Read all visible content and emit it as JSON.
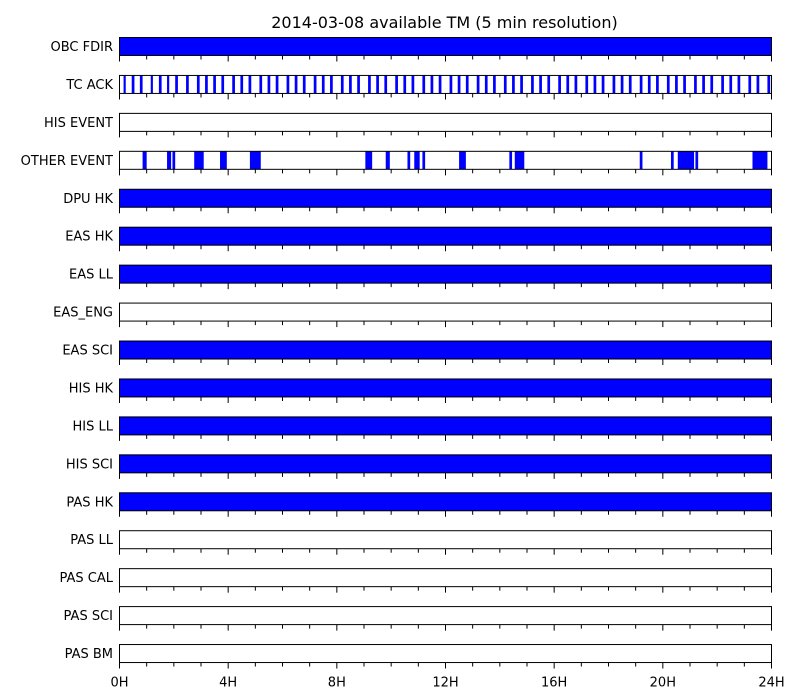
{
  "chart_data": {
    "type": "timeline",
    "title": "2014-03-08 available TM (5 min resolution)",
    "x_unit": "hours",
    "xlim": [
      0,
      24
    ],
    "x_ticks": [
      {
        "value": 0,
        "label": "0H"
      },
      {
        "value": 4,
        "label": "4H"
      },
      {
        "value": 8,
        "label": "8H"
      },
      {
        "value": 12,
        "label": "12H"
      },
      {
        "value": 16,
        "label": "16H"
      },
      {
        "value": 20,
        "label": "20H"
      },
      {
        "value": 24,
        "label": "24H"
      }
    ],
    "minor_tick_step_hours": 1,
    "available_color": "#0000ff",
    "empty_color": "#ffffff",
    "border_color": "#000000",
    "rows": [
      {
        "label": "OBC FDIR",
        "intervals": [
          [
            0,
            24
          ]
        ]
      },
      {
        "label": "TC ACK",
        "intervals": [
          [
            0.15,
            0.23
          ],
          [
            0.45,
            0.55
          ],
          [
            0.75,
            0.85
          ],
          [
            1.15,
            1.23
          ],
          [
            1.45,
            1.55
          ],
          [
            1.75,
            1.83
          ],
          [
            2.05,
            2.15
          ],
          [
            2.45,
            2.55
          ],
          [
            2.85,
            2.95
          ],
          [
            3.15,
            3.25
          ],
          [
            3.45,
            3.55
          ],
          [
            3.75,
            3.85
          ],
          [
            4.15,
            4.25
          ],
          [
            4.45,
            4.55
          ],
          [
            4.75,
            4.85
          ],
          [
            5.15,
            5.25
          ],
          [
            5.45,
            5.55
          ],
          [
            5.75,
            5.85
          ],
          [
            6.15,
            6.25
          ],
          [
            6.45,
            6.55
          ],
          [
            6.75,
            6.85
          ],
          [
            7.15,
            7.25
          ],
          [
            7.45,
            7.55
          ],
          [
            7.75,
            7.85
          ],
          [
            8.15,
            8.25
          ],
          [
            8.45,
            8.55
          ],
          [
            8.75,
            8.85
          ],
          [
            9.15,
            9.25
          ],
          [
            9.45,
            9.55
          ],
          [
            9.75,
            9.85
          ],
          [
            10.15,
            10.25
          ],
          [
            10.45,
            10.55
          ],
          [
            10.75,
            10.85
          ],
          [
            11.15,
            11.25
          ],
          [
            11.45,
            11.55
          ],
          [
            11.75,
            11.85
          ],
          [
            12.15,
            12.25
          ],
          [
            12.45,
            12.55
          ],
          [
            12.75,
            12.85
          ],
          [
            13.15,
            13.25
          ],
          [
            13.45,
            13.55
          ],
          [
            13.75,
            13.85
          ],
          [
            14.15,
            14.25
          ],
          [
            14.45,
            14.55
          ],
          [
            14.75,
            14.85
          ],
          [
            15.15,
            15.25
          ],
          [
            15.45,
            15.55
          ],
          [
            15.75,
            15.85
          ],
          [
            16.15,
            16.25
          ],
          [
            16.45,
            16.55
          ],
          [
            16.75,
            16.85
          ],
          [
            17.15,
            17.25
          ],
          [
            17.45,
            17.55
          ],
          [
            17.75,
            17.85
          ],
          [
            18.15,
            18.25
          ],
          [
            18.45,
            18.55
          ],
          [
            18.75,
            18.85
          ],
          [
            19.15,
            19.25
          ],
          [
            19.45,
            19.55
          ],
          [
            19.75,
            19.85
          ],
          [
            20.15,
            20.25
          ],
          [
            20.45,
            20.55
          ],
          [
            20.75,
            20.85
          ],
          [
            21.15,
            21.25
          ],
          [
            21.45,
            21.55
          ],
          [
            21.75,
            21.85
          ],
          [
            22.15,
            22.25
          ],
          [
            22.45,
            22.55
          ],
          [
            22.75,
            22.85
          ],
          [
            23.15,
            23.25
          ],
          [
            23.45,
            23.55
          ],
          [
            23.85,
            23.95
          ]
        ]
      },
      {
        "label": "HIS EVENT",
        "intervals": []
      },
      {
        "label": "OTHER EVENT",
        "intervals": [
          [
            0.85,
            1.0
          ],
          [
            1.75,
            1.9
          ],
          [
            1.95,
            2.05
          ],
          [
            2.75,
            3.1
          ],
          [
            3.7,
            3.95
          ],
          [
            4.8,
            5.2
          ],
          [
            9.05,
            9.3
          ],
          [
            9.8,
            9.95
          ],
          [
            10.6,
            10.7
          ],
          [
            10.85,
            11.05
          ],
          [
            11.15,
            11.25
          ],
          [
            12.5,
            12.75
          ],
          [
            14.35,
            14.45
          ],
          [
            14.55,
            14.9
          ],
          [
            19.15,
            19.25
          ],
          [
            20.3,
            20.4
          ],
          [
            20.55,
            21.15
          ],
          [
            21.2,
            21.3
          ],
          [
            23.3,
            23.85
          ]
        ]
      },
      {
        "label": "DPU HK",
        "intervals": [
          [
            0,
            24
          ]
        ]
      },
      {
        "label": "EAS HK",
        "intervals": [
          [
            0,
            24
          ]
        ]
      },
      {
        "label": "EAS LL",
        "intervals": [
          [
            0,
            24
          ]
        ]
      },
      {
        "label": "EAS_ENG",
        "intervals": []
      },
      {
        "label": "EAS SCI",
        "intervals": [
          [
            0,
            24
          ]
        ]
      },
      {
        "label": "HIS HK",
        "intervals": [
          [
            0,
            24
          ]
        ]
      },
      {
        "label": "HIS LL",
        "intervals": [
          [
            0,
            24
          ]
        ]
      },
      {
        "label": "HIS SCI",
        "intervals": [
          [
            0,
            24
          ]
        ]
      },
      {
        "label": "PAS HK",
        "intervals": [
          [
            0,
            24
          ]
        ]
      },
      {
        "label": "PAS LL",
        "intervals": []
      },
      {
        "label": "PAS CAL",
        "intervals": []
      },
      {
        "label": "PAS SCI",
        "intervals": []
      },
      {
        "label": "PAS BM",
        "intervals": []
      }
    ]
  }
}
